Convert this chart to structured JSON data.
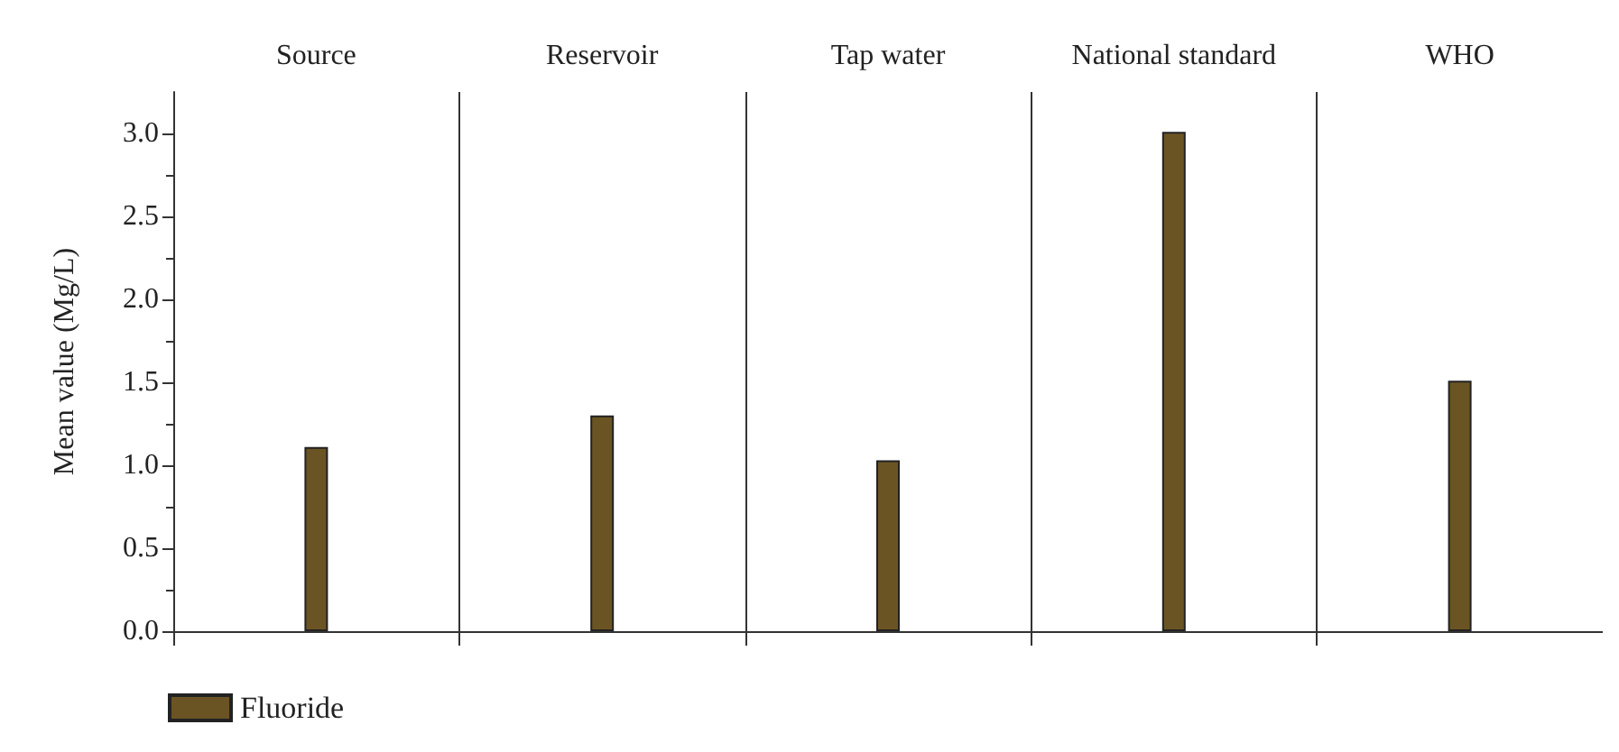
{
  "chart_data": {
    "type": "bar",
    "ylabel": "Mean value (Mg/L)",
    "categories": [
      "Source",
      "Reservoir",
      "Tap water",
      "National standard",
      "WHO"
    ],
    "series": [
      {
        "name": "Fluoride",
        "color": "#6b5424",
        "values": [
          1.11,
          1.3,
          1.03,
          3.01,
          1.51
        ]
      }
    ],
    "ylim": [
      0,
      3.25
    ],
    "yticks": [
      {
        "value": 0,
        "label": "0.0"
      },
      {
        "value": 0.5,
        "label": "0.5"
      },
      {
        "value": 1,
        "label": "1.0"
      },
      {
        "value": 1.5,
        "label": "1.5"
      },
      {
        "value": 2,
        "label": "2.0"
      },
      {
        "value": 2.5,
        "label": "2.5"
      },
      {
        "value": 3,
        "label": "3.0"
      }
    ],
    "grid": false,
    "legend": "bottom left"
  }
}
